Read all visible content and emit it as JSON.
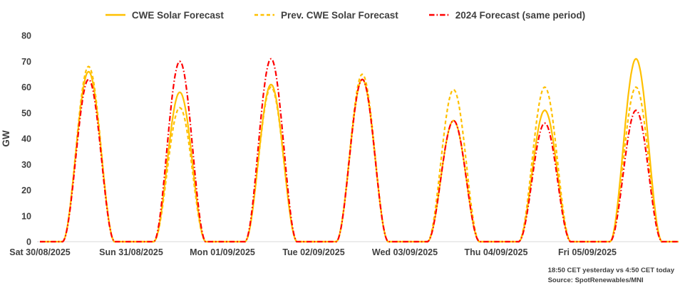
{
  "chart_data": {
    "type": "line",
    "title": "",
    "ylabel": "GW",
    "xlabel": "",
    "ylim": [
      0,
      80
    ],
    "yticks": [
      0,
      10,
      20,
      30,
      40,
      50,
      60,
      70,
      80
    ],
    "grid": false,
    "legend_position": "top",
    "categories": [
      "Sat 30/08/2025",
      "Sun 31/08/2025",
      "Mon 01/09/2025",
      "Tue 02/09/2025",
      "Wed 03/09/2025",
      "Thu 04/09/2025",
      "Fri 05/09/2025"
    ],
    "day_shape": {
      "center_hour": 12.8,
      "half_width_hours": 6.9,
      "samples_per_hour": 4
    },
    "series": [
      {
        "name": "CWE Solar Forecast",
        "color": "#FFC000",
        "style": "solid",
        "daily_peaks_gw": [
          66,
          58,
          61,
          63,
          47,
          51,
          71
        ]
      },
      {
        "name": "Prev. CWE Solar Forecast",
        "color": "#FFC000",
        "style": "dashed",
        "daily_peaks_gw": [
          68,
          52,
          60,
          65,
          59,
          60,
          60
        ]
      },
      {
        "name": "2024 Forecast (same period)",
        "color": "#FF0000",
        "style": "dashdot",
        "daily_peaks_gw": [
          63,
          70,
          71,
          63,
          47,
          46,
          51
        ]
      }
    ]
  },
  "footer": {
    "timestamp_note": "18:50 CET yesterday vs  4:50 CET today",
    "source": "Source: SpotRenewables/MNI"
  },
  "colors": {
    "text": "#404040",
    "axis_line": "#d9d9d9"
  }
}
